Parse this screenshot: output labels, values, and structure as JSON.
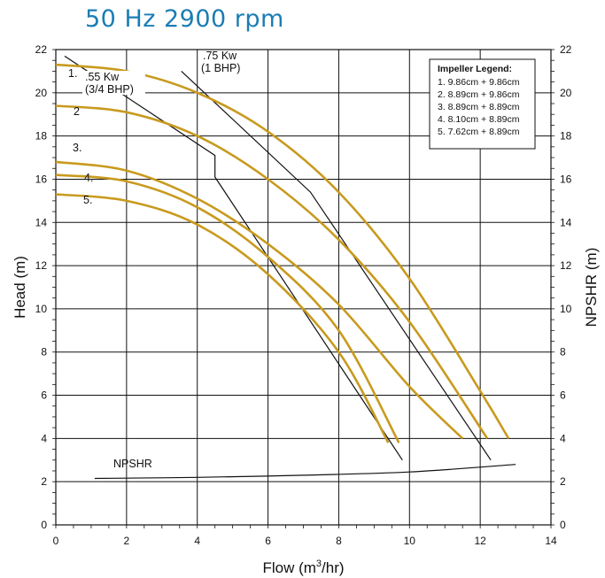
{
  "page_title": "50 Hz 2900 rpm",
  "chart_data": {
    "type": "line",
    "xlabel": "Flow (m³/hr)",
    "ylabel": "Head (m)",
    "ylabel_right": "NPSHR (m)",
    "xlim": [
      0,
      14
    ],
    "ylim": [
      0,
      22
    ],
    "x_ticks": [
      "0",
      "2",
      "4",
      "6",
      "8",
      "10",
      "12",
      "14"
    ],
    "y_ticks": [
      "0",
      "2",
      "4",
      "6",
      "8",
      "10",
      "12",
      "14",
      "16",
      "18",
      "20",
      "22"
    ],
    "grid": true,
    "curve_color": "#c89a1e",
    "line_color": "#111111",
    "series": [
      {
        "name": "1.",
        "x": [
          0,
          2,
          4,
          6,
          8,
          10,
          12,
          12.8
        ],
        "y": [
          21.3,
          21.0,
          20.0,
          18.2,
          15.4,
          11.4,
          6.2,
          4.0
        ]
      },
      {
        "name": "2",
        "x": [
          0,
          2,
          4,
          6,
          8,
          10,
          12.2
        ],
        "y": [
          19.4,
          19.1,
          18.0,
          16.0,
          13.2,
          9.4,
          4.0
        ]
      },
      {
        "name": "3.",
        "x": [
          0,
          2,
          4,
          6,
          8,
          10,
          11.5
        ],
        "y": [
          16.8,
          16.4,
          15.1,
          13.0,
          10.2,
          6.4,
          4.0
        ]
      },
      {
        "name": "4.",
        "x": [
          0,
          2,
          4,
          6,
          8,
          9.7
        ],
        "y": [
          16.2,
          15.9,
          14.7,
          12.4,
          9.0,
          3.8
        ]
      },
      {
        "name": "5.",
        "x": [
          0,
          2,
          4,
          6,
          8,
          9.4
        ],
        "y": [
          15.3,
          15.0,
          13.9,
          11.6,
          8.0,
          3.8
        ]
      }
    ],
    "power_lines": [
      {
        "label": [
          ".55 Kw",
          "(3/4 BHP)"
        ],
        "x": [
          0.25,
          4.5,
          4.5,
          9.8
        ],
        "y": [
          21.7,
          17.1,
          16.1,
          3.0
        ]
      },
      {
        "label": [
          ".75 Kw",
          "(1 BHP)"
        ],
        "x": [
          3.55,
          7.2,
          12.3
        ],
        "y": [
          21.0,
          15.4,
          3.0
        ]
      }
    ],
    "npshr": {
      "label": "NPSHR",
      "x": [
        1.1,
        4,
        7,
        10,
        13
      ],
      "y": [
        2.15,
        2.2,
        2.3,
        2.45,
        2.8
      ]
    },
    "legend": {
      "title": "Impeller Legend:",
      "position": "top-right",
      "items": [
        "1.  9.86cm + 9.86cm",
        "2.  8.89cm + 9.86cm",
        "3.  8.89cm + 8.89cm",
        "4.  8.10cm + 8.89cm",
        "5.  7.62cm + 8.89cm"
      ]
    }
  }
}
